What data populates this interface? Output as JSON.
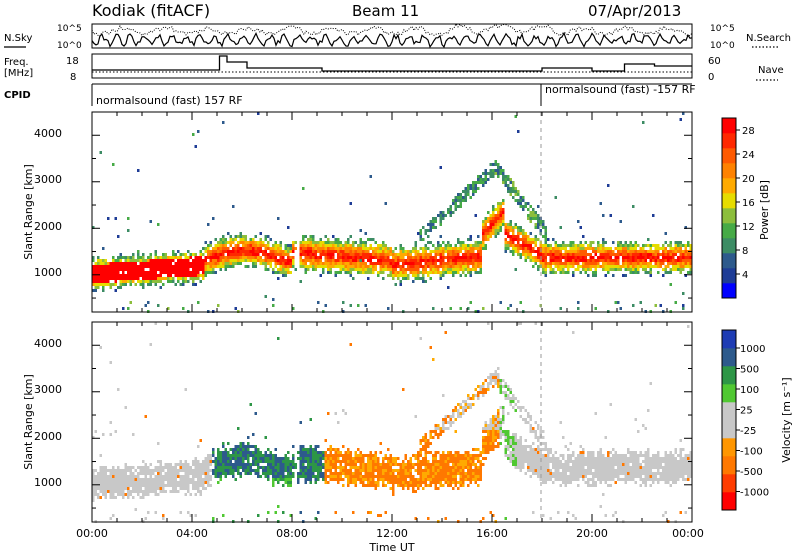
{
  "header": {
    "station": "Kodiak (fitACF)",
    "beam": "Beam 11",
    "date": "07/Apr/2013"
  },
  "strips": {
    "nsky_label": "N.Sky",
    "nsky_tick_top": "10^5",
    "nsky_tick_bottom": "10^0",
    "nsearch_label": "N.Search",
    "nsearch_tick_top": "10^5",
    "nsearch_tick_bottom": "10^0",
    "freq_label_1": "Freq.",
    "freq_label_2": "[MHz]",
    "freq_tick_top": "18",
    "freq_tick_bottom": "8",
    "nave_label": "Nave",
    "nave_tick_top": "60",
    "nave_tick_bottom": "0",
    "cpid_label": "CPID",
    "cpid_segments": [
      {
        "label": "normalsound (fast) 157 RF",
        "start": "00:00",
        "end": "18:00"
      },
      {
        "label": "normalsound (fast) -157 RF",
        "start": "18:00",
        "end": "24:00"
      }
    ]
  },
  "colors": {
    "power_scale": [
      "#0000ff",
      "#1e3c96",
      "#2d5a8c",
      "#3c8c64",
      "#46aa46",
      "#8cbe3c",
      "#e6dc00",
      "#ffaa00",
      "#ff8200",
      "#ff5a00",
      "#ff2800",
      "#ff0000"
    ],
    "velocity_scale": [
      "#ff0000",
      "#ff3c00",
      "#ff7800",
      "#ff9600",
      "#c8c8c8",
      "#c8c8c8",
      "#50c832",
      "#2d9646",
      "#2d5a8c",
      "#1e3cb4"
    ]
  },
  "chart_data": [
    {
      "type": "heatmap",
      "name": "power",
      "xlabel": "Time UT",
      "ylabel": "Slant Range [km]",
      "xlim": [
        "00:00",
        "24:00"
      ],
      "ylim": [
        200,
        4500
      ],
      "y_ticks": [
        "1000",
        "2000",
        "3000",
        "4000"
      ],
      "colorbar_label": "Power [dB]",
      "colorbar_ticks": [
        "4",
        "8",
        "12",
        "16",
        "20",
        "24",
        "28"
      ],
      "colorbar_range": [
        0,
        30
      ]
    },
    {
      "type": "heatmap",
      "name": "velocity",
      "xlabel": "Time UT",
      "ylabel": "Slant Range [km]",
      "xlim": [
        "00:00",
        "24:00"
      ],
      "ylim": [
        200,
        4500
      ],
      "x_ticks": [
        "00:00",
        "04:00",
        "08:00",
        "12:00",
        "16:00",
        "20:00",
        "00:00"
      ],
      "y_ticks": [
        "1000",
        "2000",
        "3000",
        "4000"
      ],
      "colorbar_label": "Velocity [m s⁻¹]",
      "colorbar_ticks": [
        "1000",
        "500",
        "100",
        "25",
        "-25",
        "-100",
        "-500",
        "-1000"
      ]
    }
  ]
}
